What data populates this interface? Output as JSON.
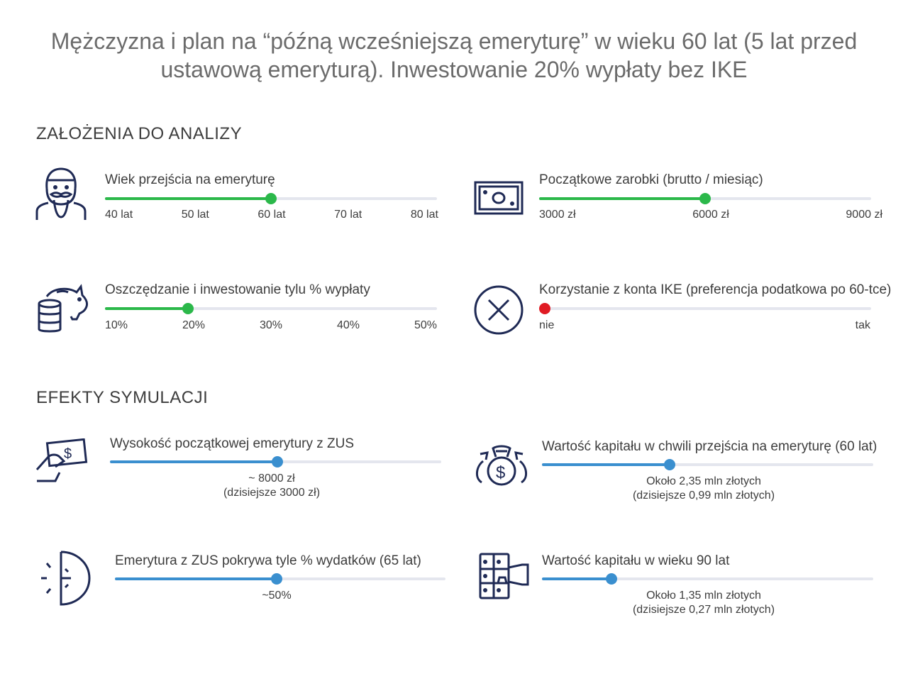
{
  "title": "Mężczyzna i plan na “późną wcześniejszą emeryturę” w wieku 60 lat (5 lat przed ustawową emeryturą). Inwestowanie 20% wypłaty bez IKE",
  "colors": {
    "input_slider": "#2bb84a",
    "result_slider": "#3a8fcf",
    "ike_off": "#e01b24",
    "track": "#e4e6ee",
    "icon": "#1f2a55"
  },
  "assumptions": {
    "heading": "ZAŁOŻENIA DO ANALIZY",
    "items": [
      {
        "label": "Wiek przejścia na emeryturę",
        "icon": "old-man-icon",
        "ticks": [
          "40 lat",
          "50 lat",
          "60 lat",
          "70 lat",
          "80 lat"
        ],
        "value": "60 lat",
        "fraction": 0.5
      },
      {
        "label": "Początkowe zarobki (brutto / miesiąc)",
        "icon": "banknote-icon",
        "ticks": [
          "3000 zł",
          "6000 zł",
          "9000 zł"
        ],
        "value": "6000 zł",
        "fraction": 0.5
      },
      {
        "label": "Oszczędzanie i inwestowanie tylu % wypłaty",
        "icon": "piggy-bank-icon",
        "ticks": [
          "10%",
          "20%",
          "30%",
          "40%",
          "50%"
        ],
        "value": "20%",
        "fraction": 0.25
      },
      {
        "label": "Korzystanie z konta IKE (preferencja podatkowa po 60-tce)",
        "icon": "x-circle-icon",
        "ticks": [
          "nie",
          "tak"
        ],
        "value": "nie",
        "fraction": 0
      }
    ]
  },
  "effects": {
    "heading": "EFEKTY SYMULACJI",
    "items": [
      {
        "label": "Wysokość początkowej emerytury z ZUS",
        "icon": "hand-money-icon",
        "line1": "~ 8000 zł",
        "line2": "(dzisiejsze 3000 zł)",
        "fraction": 0.505
      },
      {
        "label": "Wartość kapitału w chwili przejścia na emeryturę (60 lat)",
        "icon": "money-bags-icon",
        "line1": "Około 2,35 mln złotych",
        "line2": "(dzisiejsze 0,99 mln złotych)",
        "fraction": 0.385
      },
      {
        "label": "Emerytura z ZUS pokrywa tyle % wydatków (65 lat)",
        "icon": "half-clock-icon",
        "line1": "~50%",
        "line2": "",
        "fraction": 0.49
      },
      {
        "label": "Wartość kapitału w wieku 90 lat",
        "icon": "safe-deposit-icon",
        "line1": "Około 1,35 mln złotych",
        "line2": "(dzisiejsze 0,27 mln złotych)",
        "fraction": 0.21
      }
    ]
  }
}
